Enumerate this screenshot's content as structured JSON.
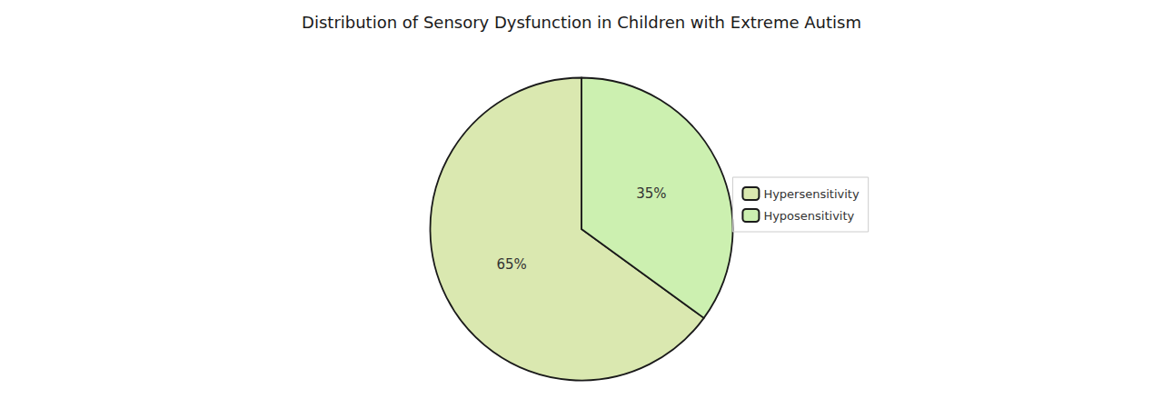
{
  "chart_data": {
    "type": "pie",
    "title": "Distribution of Sensory Dysfunction in Children with Extreme Autism",
    "categories": [
      "Hypersensitivity",
      "Hyposensitivity"
    ],
    "values": [
      65,
      35
    ],
    "value_labels": [
      "65%",
      "35%"
    ],
    "colors": [
      "#dae8b0",
      "#ccf0b0"
    ],
    "data_labels": true,
    "legend": "right"
  }
}
